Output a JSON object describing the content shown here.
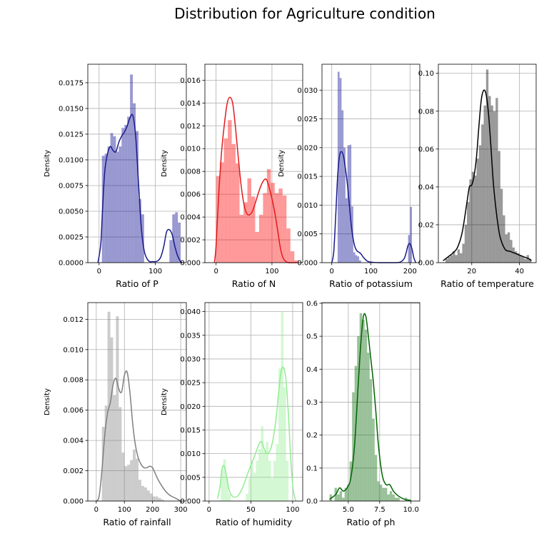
{
  "figure": {
    "title": "Distribution for Agriculture condition"
  },
  "chart_data": [
    {
      "type": "histogram+kde",
      "xlabel": "Ratio of P",
      "ylabel": "Density",
      "xlim": [
        -20,
        155
      ],
      "ylim": [
        0,
        0.0193
      ],
      "xticks": [
        0,
        100
      ],
      "xticklabels": [
        "0",
        "100"
      ],
      "yticks": [
        0,
        0.0025,
        0.005,
        0.0075,
        0.01,
        0.0125,
        0.015,
        0.0175
      ],
      "yticklabels": [
        "0.0000",
        "0.0025",
        "0.0050",
        "0.0075",
        "0.0100",
        "0.0125",
        "0.0150",
        "0.0175"
      ],
      "grid": true,
      "hist_color": "#00008B",
      "hist_alpha": 0.4,
      "kde_color": "#1a1a8c",
      "bins": {
        "start": 5,
        "width": 5,
        "values": [
          0.0104,
          0.0106,
          0.0113,
          0.0126,
          0.0123,
          0.0108,
          0.0113,
          0.0131,
          0.0134,
          0.0142,
          0.0183,
          0.0155,
          0.0128,
          0.0062,
          0.0047,
          0.0,
          0.0,
          0.0,
          0.0,
          0.0,
          0.0,
          0.0,
          0.0,
          0.0,
          0.0022,
          0.0047,
          0.0049,
          0.0039
        ]
      },
      "kde": {
        "x": [
          -2,
          3,
          6,
          10,
          15,
          20,
          25,
          30,
          35,
          40,
          45,
          50,
          55,
          60,
          65,
          70,
          75,
          80,
          85,
          90,
          95,
          100,
          105,
          110,
          115,
          120,
          125,
          130,
          135,
          140,
          145,
          148
        ],
        "y": [
          0.0,
          0.0018,
          0.005,
          0.0088,
          0.0106,
          0.0113,
          0.0109,
          0.0108,
          0.0117,
          0.0123,
          0.0127,
          0.0133,
          0.0141,
          0.0143,
          0.0123,
          0.0078,
          0.0034,
          0.0012,
          0.0004,
          0.0001,
          0.0001,
          0.0001,
          0.0002,
          0.0006,
          0.0016,
          0.003,
          0.0032,
          0.0027,
          0.0015,
          0.0006,
          0.0001,
          0.0
        ]
      }
    },
    {
      "type": "histogram+kde",
      "xlabel": "Ratio of N",
      "ylabel": "Density",
      "xlim": [
        -20,
        155
      ],
      "ylim": [
        0,
        0.0174
      ],
      "xticks": [
        0,
        100
      ],
      "xticklabels": [
        "0",
        "100"
      ],
      "yticks": [
        0,
        0.002,
        0.004,
        0.006,
        0.008,
        0.01,
        0.012,
        0.014,
        0.016
      ],
      "yticklabels": [
        "0.000",
        "0.002",
        "0.004",
        "0.006",
        "0.008",
        "0.010",
        "0.012",
        "0.014",
        "0.016"
      ],
      "grid": true,
      "hist_color": "#FF0000",
      "hist_alpha": 0.4,
      "kde_color": "#e31a1c",
      "bins": {
        "start": 0,
        "width": 7,
        "values": [
          0.0076,
          0.0088,
          0.0109,
          0.0125,
          0.0104,
          0.0087,
          0.0042,
          0.0053,
          0.0074,
          0.0058,
          0.0027,
          0.0042,
          0.0061,
          0.0082,
          0.007,
          0.0061,
          0.0065,
          0.0059,
          0.003,
          0.001,
          0.0002
        ]
      },
      "kde": {
        "x": [
          -3,
          0,
          5,
          10,
          15,
          20,
          25,
          30,
          35,
          40,
          45,
          50,
          55,
          60,
          65,
          70,
          75,
          80,
          85,
          90,
          95,
          100,
          105,
          110,
          115,
          120,
          125,
          130,
          135,
          140,
          145
        ],
        "y": [
          0.0,
          0.0015,
          0.0062,
          0.0098,
          0.0122,
          0.014,
          0.0145,
          0.0139,
          0.0117,
          0.0091,
          0.0067,
          0.0051,
          0.0043,
          0.0042,
          0.0045,
          0.0052,
          0.006,
          0.0067,
          0.0072,
          0.0073,
          0.0066,
          0.0056,
          0.0044,
          0.0029,
          0.0013,
          0.0004,
          0.0001,
          0.0,
          0.0,
          0.0,
          0.0
        ]
      }
    },
    {
      "type": "histogram+kde",
      "xlabel": "Ratio of potassium",
      "ylabel": "Density",
      "xlim": [
        -25,
        225
      ],
      "ylim": [
        0,
        0.0345
      ],
      "xticks": [
        0,
        100,
        200
      ],
      "xticklabels": [
        "0",
        "100",
        "200"
      ],
      "yticks": [
        0,
        0.005,
        0.01,
        0.015,
        0.02,
        0.025,
        0.03
      ],
      "yticklabels": [
        "0.000",
        "0.005",
        "0.010",
        "0.015",
        "0.020",
        "0.025",
        "0.030"
      ],
      "grid": true,
      "hist_color": "#00008B",
      "hist_alpha": 0.4,
      "kde_color": "#1a1a8c",
      "bins": {
        "start": 5,
        "width": 5,
        "values": [
          0.0,
          0.0,
          0.0332,
          0.0321,
          0.0265,
          0.02,
          0.0112,
          0.0204,
          0.0205,
          0.0098,
          0.0018,
          0.0013,
          0.0011,
          0.0004,
          0.0,
          0.0,
          0.0,
          0.0,
          0.0,
          0.0,
          0.0,
          0.0,
          0.0,
          0.0,
          0.0,
          0.0,
          0.0,
          0.0,
          0.0,
          0.0,
          0.0,
          0.0,
          0.0,
          0.0,
          0.0,
          0.0,
          0.0,
          0.0,
          0.0048,
          0.0097
        ]
      },
      "kde": {
        "x": [
          0,
          5,
          10,
          15,
          20,
          25,
          30,
          35,
          40,
          45,
          50,
          55,
          60,
          65,
          70,
          75,
          80,
          90,
          100,
          120,
          140,
          160,
          175,
          185,
          190,
          195,
          200,
          205,
          210,
          215
        ],
        "y": [
          0.0,
          0.0018,
          0.008,
          0.015,
          0.0186,
          0.0193,
          0.0185,
          0.0163,
          0.0136,
          0.01,
          0.0064,
          0.004,
          0.0026,
          0.002,
          0.0018,
          0.0015,
          0.001,
          0.0003,
          0.0001,
          0.0,
          0.0,
          0.0,
          0.0001,
          0.0007,
          0.0017,
          0.003,
          0.0033,
          0.0024,
          0.0008,
          0.0
        ]
      }
    },
    {
      "type": "histogram+kde",
      "xlabel": "Ratio of temperature",
      "ylabel": "",
      "xlim": [
        6,
        47
      ],
      "ylim": [
        0,
        0.1048
      ],
      "xticks": [
        20,
        40
      ],
      "xticklabels": [
        "20",
        "40"
      ],
      "yticks": [
        0,
        0.02,
        0.04,
        0.06,
        0.08,
        0.1
      ],
      "yticklabels": [
        "0.00",
        "0.02",
        "0.04",
        "0.06",
        "0.08",
        "0.10"
      ],
      "grid": true,
      "hist_color": "#000000",
      "hist_alpha": 0.4,
      "kde_color": "#000000",
      "bins": {
        "start": 9,
        "width": 1,
        "values": [
          0.002,
          0.003,
          0.004,
          0.006,
          0.004,
          0.007,
          0.005,
          0.01,
          0.02,
          0.032,
          0.044,
          0.048,
          0.046,
          0.055,
          0.062,
          0.073,
          0.083,
          0.102,
          0.088,
          0.083,
          0.08,
          0.087,
          0.059,
          0.039,
          0.025,
          0.015,
          0.016,
          0.012,
          0.008,
          0.006,
          0.005,
          0.004,
          0.003,
          0.002,
          0.004,
          0.002
        ]
      },
      "kde": {
        "x": [
          8,
          10,
          12,
          14,
          16,
          18,
          19,
          20,
          21,
          22,
          23,
          24,
          25,
          26,
          27,
          28,
          29,
          30,
          31,
          32,
          34,
          36,
          38,
          40,
          42,
          44,
          45
        ],
        "y": [
          0.001,
          0.003,
          0.005,
          0.008,
          0.016,
          0.032,
          0.04,
          0.041,
          0.046,
          0.056,
          0.072,
          0.086,
          0.091,
          0.089,
          0.079,
          0.062,
          0.043,
          0.03,
          0.02,
          0.013,
          0.007,
          0.006,
          0.005,
          0.004,
          0.003,
          0.002,
          0.001
        ]
      }
    },
    {
      "type": "histogram+kde",
      "xlabel": "Ratio of rainfall",
      "ylabel": "Density",
      "xlim": [
        -30,
        320
      ],
      "ylim": [
        0,
        0.0131
      ],
      "xticks": [
        0,
        100,
        200,
        300
      ],
      "xticklabels": [
        "0",
        "100",
        "200",
        "300"
      ],
      "yticks": [
        0,
        0.002,
        0.004,
        0.006,
        0.008,
        0.01,
        0.012
      ],
      "yticklabels": [
        "0.000",
        "0.002",
        "0.004",
        "0.006",
        "0.008",
        "0.010",
        "0.012"
      ],
      "grid": true,
      "hist_color": "#808080",
      "hist_alpha": 0.4,
      "kde_color": "#7f7f7f",
      "bins": {
        "start": 20,
        "width": 10,
        "values": [
          0.0049,
          0.0063,
          0.0125,
          0.0108,
          0.007,
          0.0122,
          0.0062,
          0.0032,
          0.0023,
          0.0024,
          0.0027,
          0.0034,
          0.0028,
          0.0014,
          0.001,
          0.0009,
          0.0007,
          0.0005,
          0.0003,
          0.0003,
          0.0002,
          0.0001,
          0.0
        ]
      },
      "kde": {
        "x": [
          0,
          10,
          20,
          30,
          40,
          50,
          60,
          70,
          80,
          90,
          100,
          110,
          120,
          130,
          140,
          150,
          160,
          170,
          180,
          190,
          200,
          210,
          220,
          240,
          260,
          280,
          300
        ],
        "y": [
          0.0,
          0.0003,
          0.002,
          0.0043,
          0.0058,
          0.0065,
          0.0077,
          0.0081,
          0.0074,
          0.0072,
          0.0083,
          0.0085,
          0.0071,
          0.005,
          0.0036,
          0.0028,
          0.0024,
          0.0022,
          0.0022,
          0.0023,
          0.0022,
          0.0018,
          0.0014,
          0.0008,
          0.0004,
          0.0002,
          0.0
        ]
      }
    },
    {
      "type": "histogram+kde",
      "xlabel": "Ratio of humidity",
      "ylabel": "Density",
      "xlim": [
        -5,
        112
      ],
      "ylim": [
        0,
        0.0419
      ],
      "xticks": [
        0,
        50,
        100
      ],
      "xticklabels": [
        "0",
        "50",
        "100"
      ],
      "yticks": [
        0,
        0.005,
        0.01,
        0.015,
        0.02,
        0.025,
        0.03,
        0.035,
        0.04
      ],
      "yticklabels": [
        "0.000",
        "0.005",
        "0.010",
        "0.015",
        "0.020",
        "0.025",
        "0.030",
        "0.035",
        "0.040"
      ],
      "grid": true,
      "hist_color": "#90EE90",
      "hist_alpha": 0.4,
      "kde_color": "#90ee90",
      "bins": {
        "start": 14,
        "width": 3,
        "values": [
          0.0065,
          0.0088,
          0.0048,
          0.0015,
          0.0,
          0.0,
          0.0,
          0.0,
          0.0,
          0.0,
          0.0015,
          0.0047,
          0.0083,
          0.006,
          0.0085,
          0.011,
          0.0158,
          0.0105,
          0.0125,
          0.0085,
          0.0048,
          0.0085,
          0.012,
          0.028,
          0.04,
          0.024,
          0.0085,
          0.0
        ]
      },
      "kde": {
        "x": [
          10,
          13,
          16,
          19,
          22,
          25,
          28,
          31,
          35,
          40,
          45,
          50,
          55,
          60,
          63,
          66,
          70,
          75,
          80,
          83,
          86,
          89,
          92,
          95,
          98,
          101,
          104
        ],
        "y": [
          0.0005,
          0.003,
          0.0072,
          0.0069,
          0.004,
          0.0018,
          0.001,
          0.0008,
          0.0012,
          0.0028,
          0.0052,
          0.0076,
          0.0098,
          0.0121,
          0.0125,
          0.011,
          0.01,
          0.0118,
          0.0172,
          0.0226,
          0.0272,
          0.0282,
          0.0255,
          0.018,
          0.008,
          0.002,
          0.0
        ]
      }
    },
    {
      "type": "histogram+kde",
      "xlabel": "Ratio of ph",
      "ylabel": "",
      "xlim": [
        2.9,
        10.7
      ],
      "ylim": [
        0,
        0.602
      ],
      "xticks": [
        5,
        7.5,
        10
      ],
      "xticklabels": [
        "5.0",
        "7.5",
        "10.0"
      ],
      "yticks": [
        0,
        0.1,
        0.2,
        0.3,
        0.4,
        0.5,
        0.6
      ],
      "yticklabels": [
        "0.0",
        "0.1",
        "0.2",
        "0.3",
        "0.4",
        "0.5",
        "0.6"
      ],
      "grid": true,
      "hist_color": "#006400",
      "hist_alpha": 0.4,
      "kde_color": "#006400",
      "bins": {
        "start": 3.5,
        "width": 0.2,
        "values": [
          0.02,
          0.0,
          0.04,
          0.02,
          0.03,
          0.01,
          0.04,
          0.05,
          0.12,
          0.33,
          0.41,
          0.5,
          0.57,
          0.55,
          0.52,
          0.45,
          0.37,
          0.25,
          0.14,
          0.06,
          0.05,
          0.04,
          0.04,
          0.02,
          0.03,
          0.02,
          0.01,
          0.01,
          0.0,
          0.0,
          0.01,
          0.0,
          0.0
        ]
      },
      "kde": {
        "x": [
          3.5,
          4.0,
          4.3,
          4.6,
          4.9,
          5.2,
          5.5,
          5.8,
          6.0,
          6.2,
          6.4,
          6.6,
          6.8,
          7.0,
          7.2,
          7.4,
          7.7,
          8.0,
          8.3,
          8.6,
          9.0,
          9.5,
          10.0
        ],
        "y": [
          0.005,
          0.02,
          0.04,
          0.03,
          0.04,
          0.07,
          0.17,
          0.36,
          0.48,
          0.56,
          0.56,
          0.5,
          0.43,
          0.36,
          0.27,
          0.17,
          0.08,
          0.05,
          0.05,
          0.03,
          0.015,
          0.005,
          0.002
        ]
      }
    }
  ]
}
